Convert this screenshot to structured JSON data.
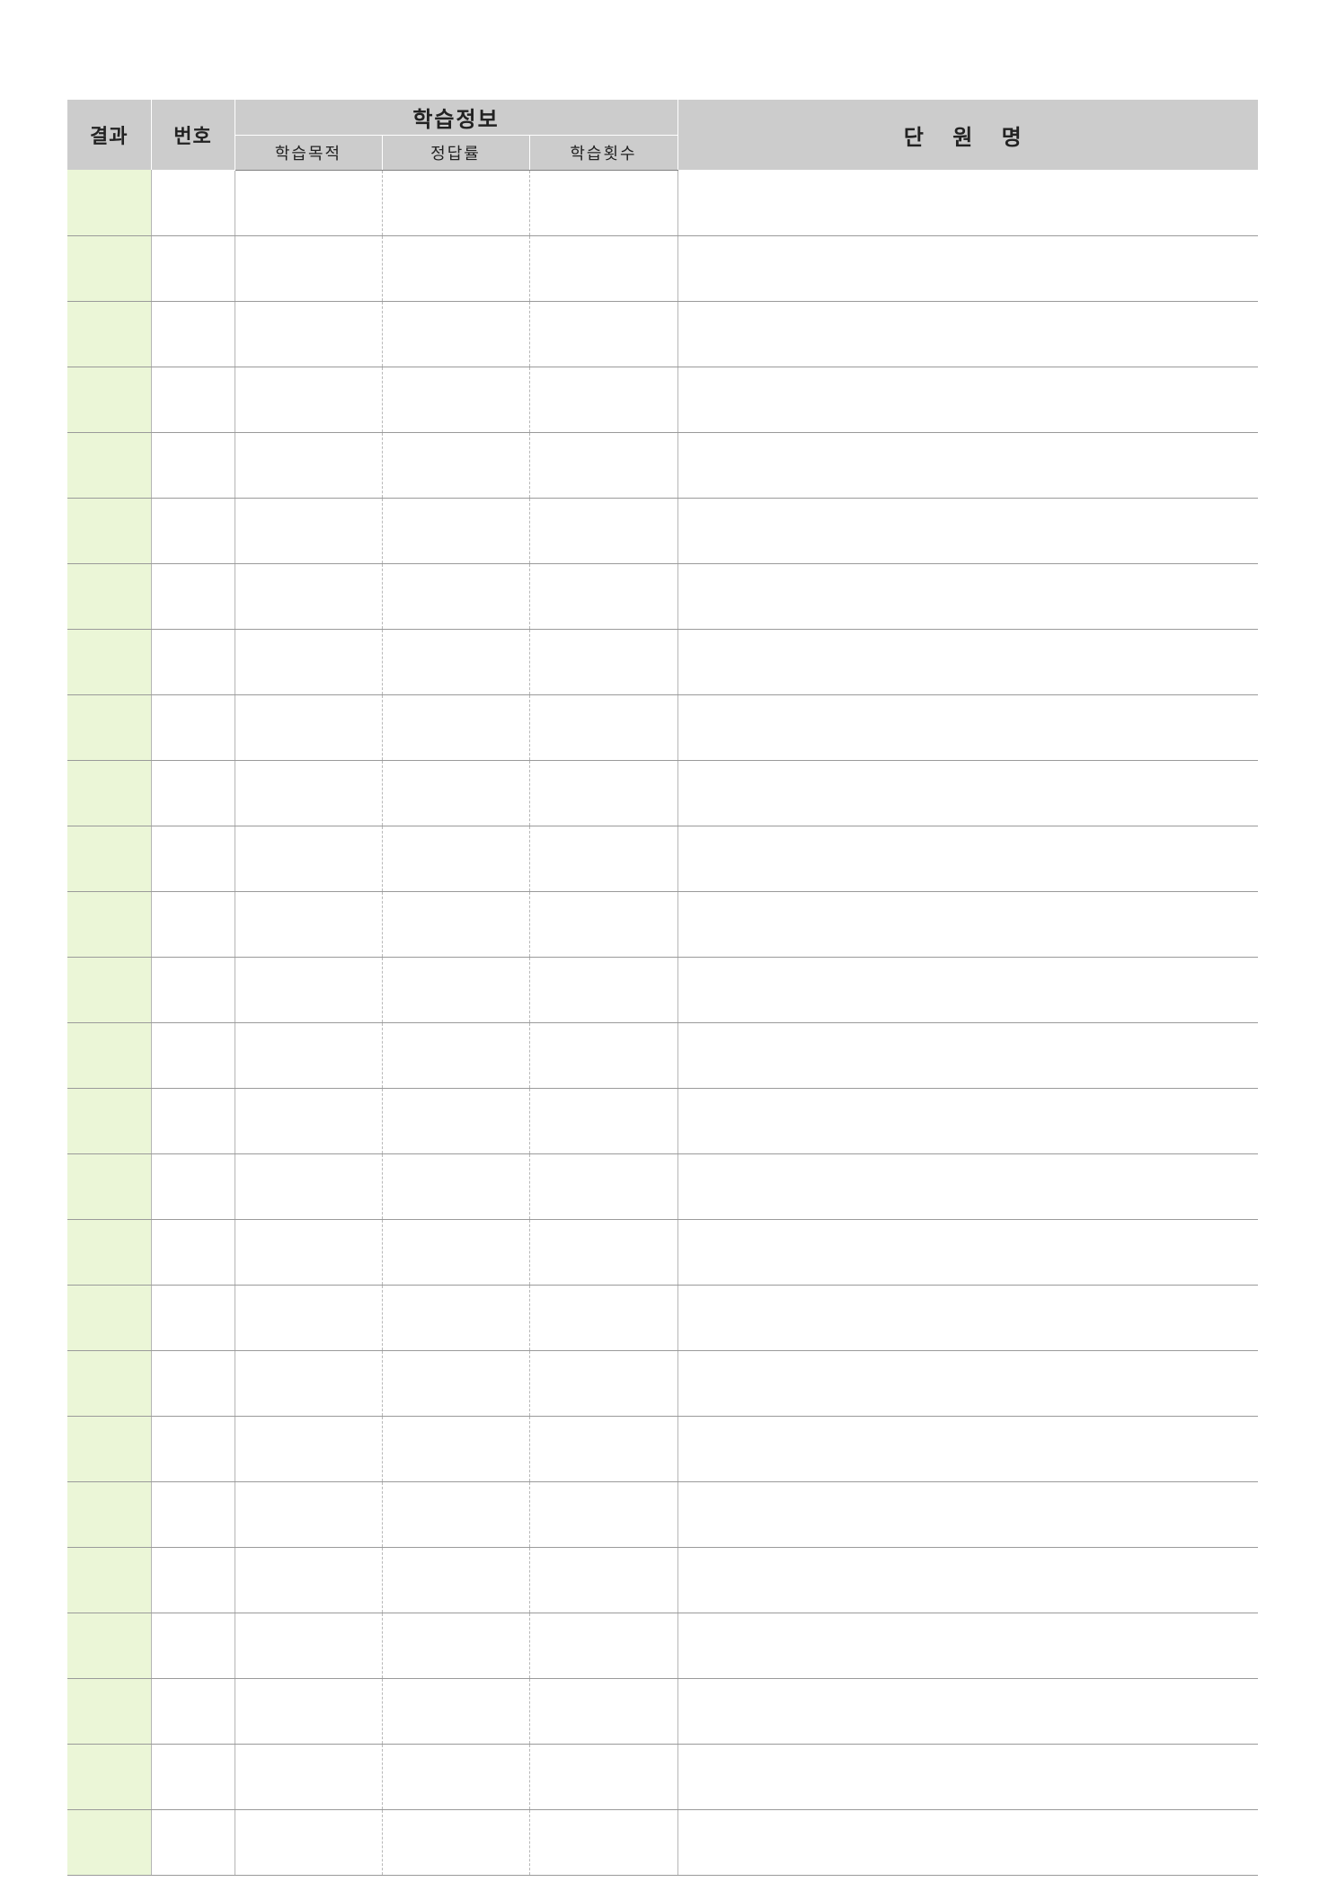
{
  "header": {
    "result": "결과",
    "number": "번호",
    "study_info": "학습정보",
    "unit_name": "단 원 명",
    "study_purpose": "학습목적",
    "correct_rate": "정답률",
    "study_count": "학습횟수"
  },
  "rows": [
    {
      "result": "",
      "number": "",
      "study_purpose": "",
      "correct_rate": "",
      "study_count": "",
      "unit_name": ""
    },
    {
      "result": "",
      "number": "",
      "study_purpose": "",
      "correct_rate": "",
      "study_count": "",
      "unit_name": ""
    },
    {
      "result": "",
      "number": "",
      "study_purpose": "",
      "correct_rate": "",
      "study_count": "",
      "unit_name": ""
    },
    {
      "result": "",
      "number": "",
      "study_purpose": "",
      "correct_rate": "",
      "study_count": "",
      "unit_name": ""
    },
    {
      "result": "",
      "number": "",
      "study_purpose": "",
      "correct_rate": "",
      "study_count": "",
      "unit_name": ""
    },
    {
      "result": "",
      "number": "",
      "study_purpose": "",
      "correct_rate": "",
      "study_count": "",
      "unit_name": ""
    },
    {
      "result": "",
      "number": "",
      "study_purpose": "",
      "correct_rate": "",
      "study_count": "",
      "unit_name": ""
    },
    {
      "result": "",
      "number": "",
      "study_purpose": "",
      "correct_rate": "",
      "study_count": "",
      "unit_name": ""
    },
    {
      "result": "",
      "number": "",
      "study_purpose": "",
      "correct_rate": "",
      "study_count": "",
      "unit_name": ""
    },
    {
      "result": "",
      "number": "",
      "study_purpose": "",
      "correct_rate": "",
      "study_count": "",
      "unit_name": ""
    },
    {
      "result": "",
      "number": "",
      "study_purpose": "",
      "correct_rate": "",
      "study_count": "",
      "unit_name": ""
    },
    {
      "result": "",
      "number": "",
      "study_purpose": "",
      "correct_rate": "",
      "study_count": "",
      "unit_name": ""
    },
    {
      "result": "",
      "number": "",
      "study_purpose": "",
      "correct_rate": "",
      "study_count": "",
      "unit_name": ""
    },
    {
      "result": "",
      "number": "",
      "study_purpose": "",
      "correct_rate": "",
      "study_count": "",
      "unit_name": ""
    },
    {
      "result": "",
      "number": "",
      "study_purpose": "",
      "correct_rate": "",
      "study_count": "",
      "unit_name": ""
    },
    {
      "result": "",
      "number": "",
      "study_purpose": "",
      "correct_rate": "",
      "study_count": "",
      "unit_name": ""
    },
    {
      "result": "",
      "number": "",
      "study_purpose": "",
      "correct_rate": "",
      "study_count": "",
      "unit_name": ""
    },
    {
      "result": "",
      "number": "",
      "study_purpose": "",
      "correct_rate": "",
      "study_count": "",
      "unit_name": ""
    },
    {
      "result": "",
      "number": "",
      "study_purpose": "",
      "correct_rate": "",
      "study_count": "",
      "unit_name": ""
    },
    {
      "result": "",
      "number": "",
      "study_purpose": "",
      "correct_rate": "",
      "study_count": "",
      "unit_name": ""
    },
    {
      "result": "",
      "number": "",
      "study_purpose": "",
      "correct_rate": "",
      "study_count": "",
      "unit_name": ""
    },
    {
      "result": "",
      "number": "",
      "study_purpose": "",
      "correct_rate": "",
      "study_count": "",
      "unit_name": ""
    },
    {
      "result": "",
      "number": "",
      "study_purpose": "",
      "correct_rate": "",
      "study_count": "",
      "unit_name": ""
    },
    {
      "result": "",
      "number": "",
      "study_purpose": "",
      "correct_rate": "",
      "study_count": "",
      "unit_name": ""
    },
    {
      "result": "",
      "number": "",
      "study_purpose": "",
      "correct_rate": "",
      "study_count": "",
      "unit_name": ""
    },
    {
      "result": "",
      "number": "",
      "study_purpose": "",
      "correct_rate": "",
      "study_count": "",
      "unit_name": ""
    }
  ],
  "colors": {
    "header_bg": "#cccccc",
    "result_col_bg": "#ebf6d7",
    "grid_line": "#9a9a9a"
  }
}
